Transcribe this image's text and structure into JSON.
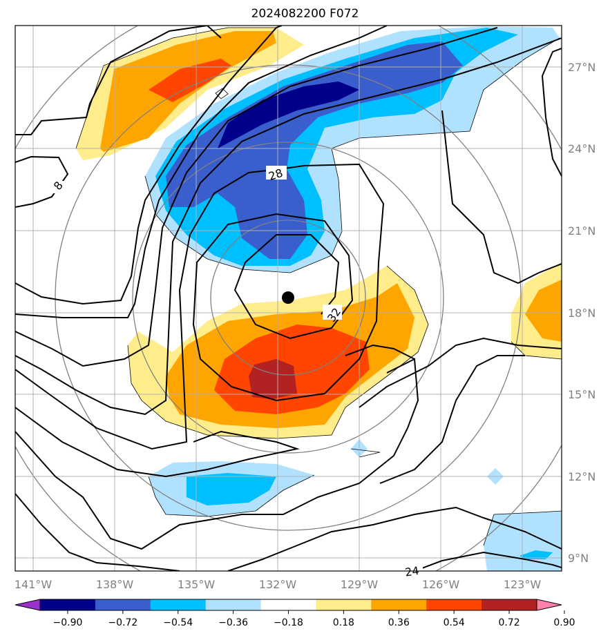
{
  "title": "2024082200 F072",
  "map": {
    "lon_ticks": [
      "141°W",
      "138°W",
      "135°W",
      "132°W",
      "129°W",
      "126°W",
      "123°W"
    ],
    "lat_ticks": [
      "27°N",
      "24°N",
      "21°N",
      "18°N",
      "15°N",
      "12°N",
      "9°N"
    ],
    "contour_labels": [
      "8",
      "28",
      "32",
      "24"
    ],
    "storm_center": {
      "lon": -131.6,
      "lat": 18.5
    }
  },
  "colorbar": {
    "labels": [
      "−0.90",
      "−0.72",
      "−0.54",
      "−0.36",
      "−0.18",
      "0.18",
      "0.36",
      "0.54",
      "0.72",
      "0.90"
    ],
    "colors": [
      "#9932cc",
      "#00008b",
      "#3a5fcd",
      "#00bfff",
      "#b0e2ff",
      "#ffffff",
      "#ffec8b",
      "#ffa500",
      "#ff4500",
      "#b22222",
      "#ff82ab"
    ]
  }
}
